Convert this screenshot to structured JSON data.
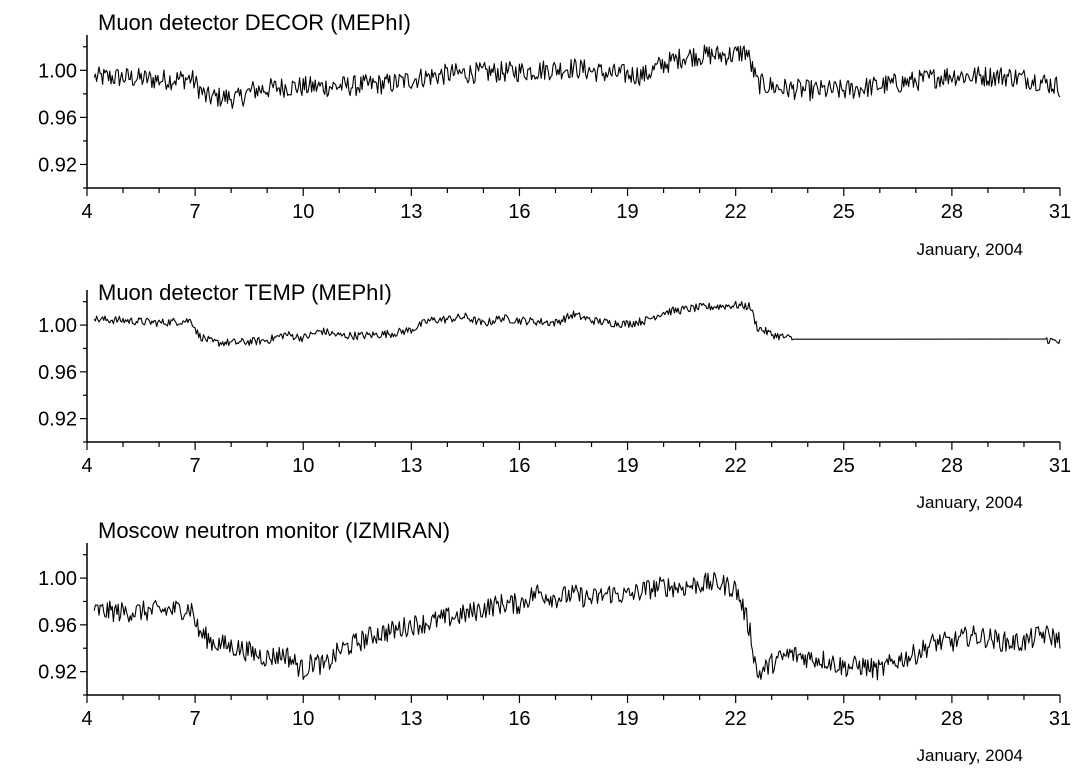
{
  "chart_data": [
    {
      "type": "line",
      "title": "Muon detector DECOR (MEPhI)",
      "xlabel": "January, 2004",
      "ylabel": "",
      "xlim": [
        4,
        31
      ],
      "ylim": [
        0.9,
        1.03
      ],
      "x_ticks": [
        4,
        7,
        10,
        13,
        16,
        19,
        22,
        25,
        28,
        31
      ],
      "x_tick_labels": [
        "4",
        "7",
        "10",
        "13",
        "16",
        "19",
        "22",
        "25",
        "28",
        "31"
      ],
      "y_ticks": [
        0.92,
        0.96,
        1.0
      ],
      "y_tick_labels": [
        "0.92",
        "0.96",
        "1.00"
      ],
      "grid": false,
      "line_color": "#000000",
      "series": [
        {
          "x": [
            4.2,
            5,
            6,
            6.9,
            7.3,
            7.8,
            8.2,
            8.6,
            9.5,
            10.5,
            11.5,
            12.5,
            13.3,
            14.1,
            15,
            16,
            17,
            17.5,
            18.5,
            19.5,
            19.9,
            20.6,
            21.3,
            21.9,
            22.3,
            22.6,
            23.2,
            24,
            25,
            26,
            27,
            28,
            28.5,
            29.5,
            30.3,
            31
          ],
          "values": [
            0.994,
            0.994,
            0.992,
            0.993,
            0.977,
            0.977,
            0.976,
            0.983,
            0.986,
            0.986,
            0.987,
            0.989,
            0.994,
            0.997,
            0.998,
            0.999,
            1.001,
            1.002,
            0.997,
            0.996,
            1.004,
            1.012,
            1.013,
            1.013,
            1.016,
            0.989,
            0.985,
            0.983,
            0.983,
            0.987,
            0.991,
            0.996,
            0.995,
            0.995,
            0.992,
            0.986
          ]
        }
      ]
    },
    {
      "type": "line",
      "title": "Muon detector TEMP (MEPhI)",
      "xlabel": "January, 2004",
      "ylabel": "",
      "xlim": [
        4,
        31
      ],
      "ylim": [
        0.9,
        1.03
      ],
      "x_ticks": [
        4,
        7,
        10,
        13,
        16,
        19,
        22,
        25,
        28,
        31
      ],
      "x_tick_labels": [
        "4",
        "7",
        "10",
        "13",
        "16",
        "19",
        "22",
        "25",
        "28",
        "31"
      ],
      "y_ticks": [
        0.92,
        0.96,
        1.0
      ],
      "y_tick_labels": [
        "0.92",
        "0.96",
        "1.00"
      ],
      "grid": false,
      "line_color": "#000000",
      "series": [
        {
          "x": [
            4.2,
            5,
            6,
            6.9,
            7.1,
            7.5,
            8.2,
            9,
            9.5,
            10,
            10.5,
            11,
            11.7,
            12.5,
            13,
            13.5,
            14,
            14.5,
            15,
            15.5,
            16,
            17,
            17.5,
            18,
            18.5,
            19,
            19.5,
            20,
            20.5,
            21,
            21.5,
            22,
            22.4,
            22.6,
            23,
            23.6,
            30.6,
            31
          ],
          "values": [
            1.005,
            1.004,
            1.002,
            1.004,
            0.991,
            0.985,
            0.985,
            0.987,
            0.992,
            0.989,
            0.995,
            0.991,
            0.991,
            0.993,
            0.996,
            1.004,
            1.005,
            1.007,
            1.001,
            1.006,
            1.004,
            1.002,
            1.009,
            1.004,
            1.002,
            1.001,
            1.004,
            1.011,
            1.013,
            1.015,
            1.016,
            1.017,
            1.016,
            0.998,
            0.992,
            0.988,
            0.988,
            0.985
          ]
        }
      ]
    },
    {
      "type": "line",
      "title": "Moscow neutron monitor (IZMIRAN)",
      "xlabel": "January, 2004",
      "ylabel": "",
      "xlim": [
        4,
        31
      ],
      "ylim": [
        0.9,
        1.03
      ],
      "x_ticks": [
        4,
        7,
        10,
        13,
        16,
        19,
        22,
        25,
        28,
        31
      ],
      "x_tick_labels": [
        "4",
        "7",
        "10",
        "13",
        "16",
        "19",
        "22",
        "25",
        "28",
        "31"
      ],
      "y_ticks": [
        0.92,
        0.96,
        1.0
      ],
      "y_tick_labels": [
        "0.92",
        "0.96",
        "1.00"
      ],
      "grid": false,
      "line_color": "#000000",
      "series": [
        {
          "x": [
            4.2,
            5,
            6,
            6.9,
            7.1,
            7.5,
            8.2,
            9,
            9.5,
            10,
            10.3,
            10.6,
            11,
            11.5,
            12,
            12.5,
            13,
            13.5,
            14,
            14.5,
            15,
            15.5,
            16,
            16.5,
            17,
            17.5,
            18,
            18.5,
            19,
            19.5,
            20,
            20.5,
            21,
            21.5,
            22,
            22.2,
            22.4,
            22.6,
            23,
            23.5,
            24,
            24.5,
            25,
            25.5,
            26,
            26.5,
            27,
            27.5,
            28,
            28.5,
            29,
            29.5,
            30,
            30.5,
            30.8,
            31
          ],
          "values": [
            0.972,
            0.971,
            0.972,
            0.974,
            0.954,
            0.945,
            0.94,
            0.932,
            0.935,
            0.921,
            0.929,
            0.924,
            0.938,
            0.945,
            0.952,
            0.955,
            0.96,
            0.962,
            0.966,
            0.969,
            0.974,
            0.978,
            0.978,
            0.988,
            0.983,
            0.986,
            0.982,
            0.987,
            0.985,
            0.99,
            0.993,
            0.992,
            0.995,
            0.996,
            0.991,
            0.975,
            0.955,
            0.917,
            0.927,
            0.935,
            0.932,
            0.93,
            0.924,
            0.925,
            0.921,
            0.93,
            0.935,
            0.945,
            0.945,
            0.951,
            0.949,
            0.945,
            0.945,
            0.952,
            0.95,
            0.946
          ]
        }
      ]
    }
  ]
}
